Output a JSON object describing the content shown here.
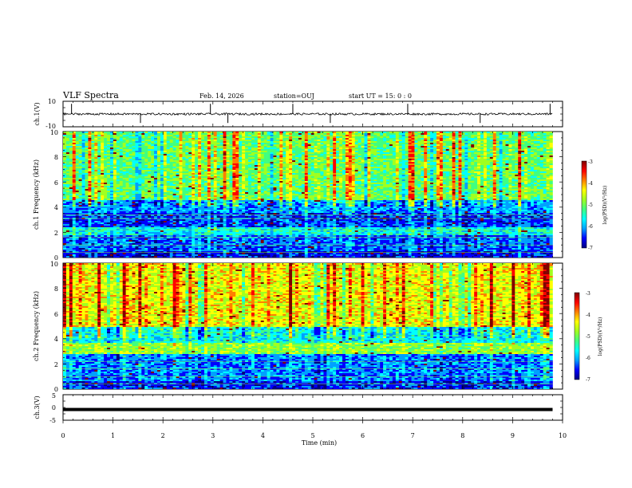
{
  "header": {
    "title": "VLF Spectra",
    "date": "Feb. 14, 2026",
    "station": "station=OUJ",
    "start": "start UT = 15: 0 : 0"
  },
  "colors": {
    "colormap": [
      "#000080",
      "#0000ff",
      "#00a0ff",
      "#00ffff",
      "#40ff80",
      "#a0ff20",
      "#ffff00",
      "#ff8000",
      "#ff0000",
      "#800000"
    ]
  },
  "chart_data": [
    {
      "type": "line",
      "panel": "ch1-waveform",
      "ylabel": "ch.1(V)",
      "ylim": [
        -10,
        10
      ],
      "yticks": [
        "10",
        "-10"
      ],
      "xlim": [
        0,
        10
      ],
      "baseline_v": 0,
      "grid": false
    },
    {
      "type": "heatmap",
      "panel": "ch1-spectrogram",
      "ylabel": "ch.1 Frequency (kHz)",
      "ylim": [
        0,
        10
      ],
      "yticks": [
        "0",
        "2",
        "4",
        "6",
        "8",
        "10"
      ],
      "xlim": [
        0,
        9.8
      ],
      "colorbar": {
        "label": "log(PSD)(V²/Hz)",
        "range": [
          -7,
          -3
        ],
        "ticks": [
          "-3",
          "-4",
          "-5",
          "-6",
          "-7"
        ]
      },
      "band_levels_khz": [
        {
          "f": [
            0,
            0.5
          ],
          "v": -6.5
        },
        {
          "f": [
            0.5,
            1.8
          ],
          "v": -6.2
        },
        {
          "f": [
            1.8,
            2.4
          ],
          "v": -5.6
        },
        {
          "f": [
            2.4,
            3.5
          ],
          "v": -6.3
        },
        {
          "f": [
            3.5,
            4.5
          ],
          "v": -6.0
        },
        {
          "f": [
            4.5,
            10
          ],
          "v": -5.1
        }
      ]
    },
    {
      "type": "heatmap",
      "panel": "ch2-spectrogram",
      "ylabel": "ch.2 Frequency (kHz)",
      "ylim": [
        0,
        10
      ],
      "yticks": [
        "0",
        "2",
        "4",
        "6",
        "8",
        "10"
      ],
      "xlim": [
        0,
        9.8
      ],
      "colorbar": {
        "label": "log(PSD)(V²/Hz)",
        "range": [
          -7,
          -3
        ],
        "ticks": [
          "-3",
          "-4",
          "-5",
          "-6",
          "-7"
        ]
      },
      "band_levels_khz": [
        {
          "f": [
            0,
            0.6
          ],
          "v": -6.4
        },
        {
          "f": [
            0.6,
            2.8
          ],
          "v": -6.1
        },
        {
          "f": [
            2.8,
            3.7
          ],
          "v": -4.9
        },
        {
          "f": [
            3.7,
            5.0
          ],
          "v": -5.6
        },
        {
          "f": [
            5.0,
            10
          ],
          "v": -4.5
        }
      ]
    },
    {
      "type": "line",
      "panel": "ch3-waveform",
      "ylabel": "ch.3(V)",
      "ylim": [
        -5,
        5
      ],
      "yticks": [
        "5",
        "0",
        "-5"
      ],
      "xlim": [
        0,
        10
      ],
      "baseline_v": -0.8,
      "grid": false
    }
  ],
  "xaxis": {
    "label": "Time (min)",
    "ticks": [
      "0",
      "1",
      "2",
      "3",
      "4",
      "5",
      "6",
      "7",
      "8",
      "9",
      "10"
    ]
  }
}
